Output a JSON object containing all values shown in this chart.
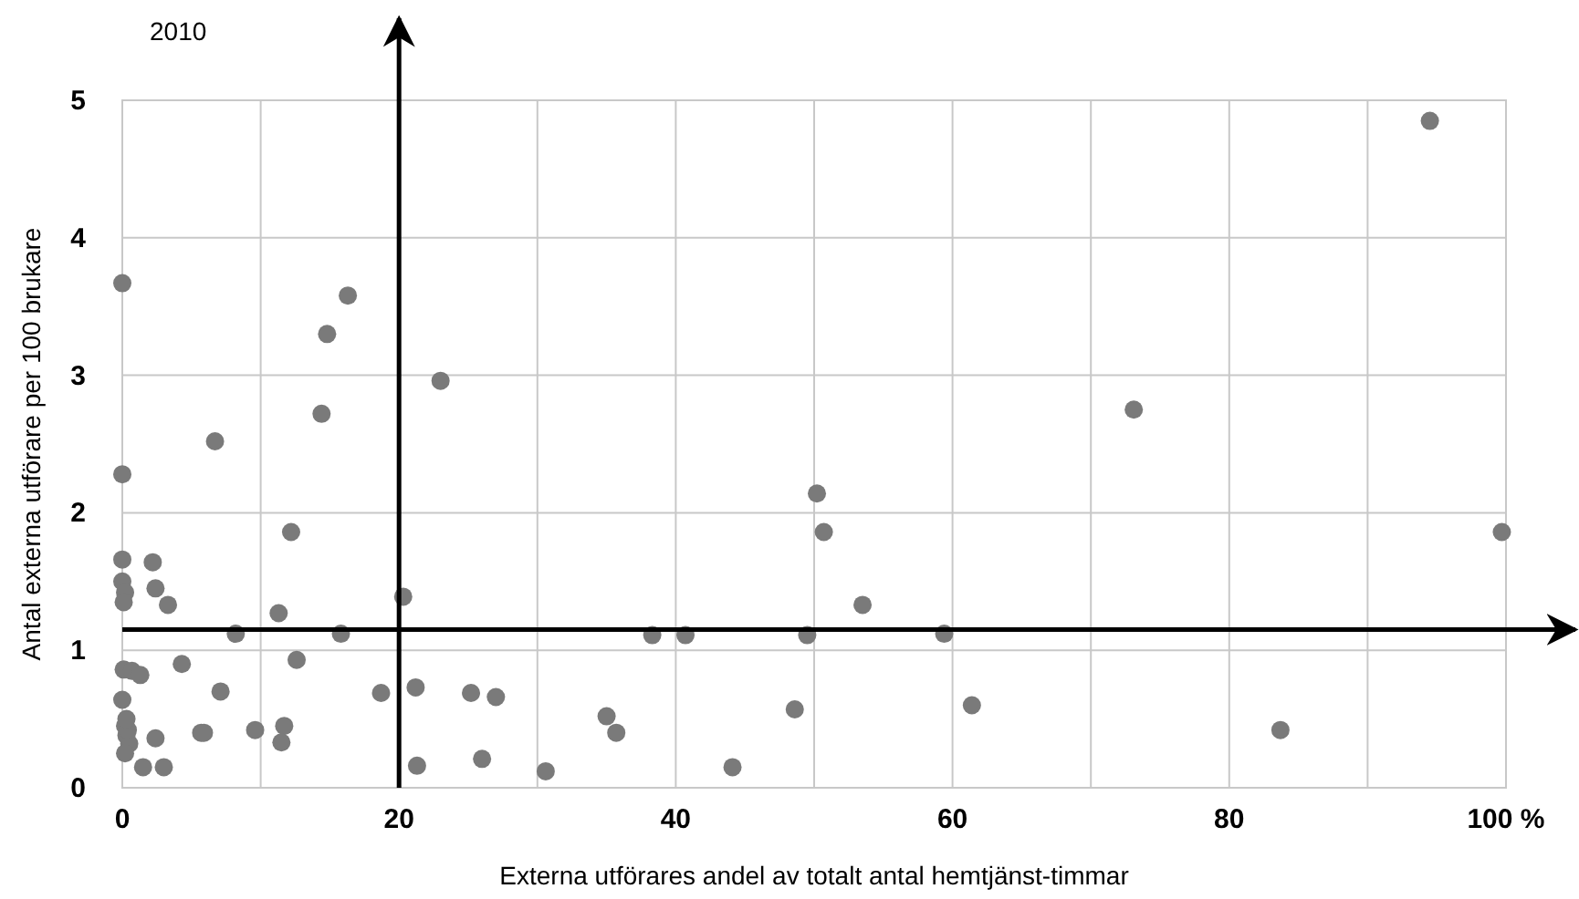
{
  "chart_data": {
    "type": "scatter",
    "title": "2010",
    "xlabel": "Externa utförares andel av totalt antal hemtjänst-timmar",
    "ylabel": "Antal externa utförare per 100 brukare",
    "xlim": [
      0,
      100
    ],
    "ylim": [
      0,
      5
    ],
    "xticks": [
      0,
      {
        "value": 10,
        "label": null
      },
      20,
      {
        "value": 30,
        "label": null
      },
      40,
      {
        "value": 50,
        "label": null
      },
      60,
      {
        "value": 70,
        "label": null
      },
      80,
      {
        "value": 90,
        "label": null
      },
      {
        "value": 100,
        "label": "100 %"
      }
    ],
    "yticks": [
      0,
      1,
      2,
      3,
      4,
      5
    ],
    "grid": true,
    "marker": "circle",
    "ref_lines": [
      {
        "axis": "x",
        "value": 20,
        "color": "#000000"
      },
      {
        "axis": "y",
        "value": 1.15,
        "color": "#000000"
      }
    ],
    "series": [
      {
        "color": "#7a7a7a",
        "x": [
          0,
          0,
          0,
          0,
          0.2,
          0.1,
          2.2,
          2.4,
          3.3,
          6.7,
          12.2,
          11.3,
          8.2,
          15.8,
          4.3,
          12.6,
          7.1,
          0.1,
          0.7,
          1.3,
          0,
          0.2,
          0.3,
          0.5,
          0.2,
          0.4,
          0.3,
          2.4,
          3.0,
          1.5,
          5.7,
          5.9,
          9.6,
          11.7,
          11.5,
          18.7,
          21.2,
          20.3,
          16.3,
          14.8,
          14.4,
          23,
          21.3,
          25.2,
          27,
          26,
          30.6,
          35,
          35.7,
          38.3,
          40.7,
          44.1,
          48.6,
          49.5,
          50.2,
          50.7,
          53.5,
          59.4,
          61.4,
          73.1,
          83.7,
          94.5,
          99.7
        ],
        "values": [
          3.67,
          2.28,
          1.66,
          1.5,
          1.42,
          1.35,
          1.64,
          1.45,
          1.33,
          2.52,
          1.86,
          1.27,
          1.12,
          1.12,
          0.9,
          0.93,
          0.7,
          0.86,
          0.85,
          0.82,
          0.64,
          0.45,
          0.38,
          0.32,
          0.25,
          0.42,
          0.5,
          0.36,
          0.15,
          0.15,
          0.4,
          0.4,
          0.42,
          0.45,
          0.33,
          0.69,
          0.73,
          1.39,
          3.58,
          3.3,
          2.72,
          2.96,
          0.16,
          0.69,
          0.66,
          0.21,
          0.12,
          0.52,
          0.4,
          1.11,
          1.11,
          0.15,
          0.57,
          1.11,
          2.14,
          1.86,
          1.33,
          1.12,
          0.6,
          2.75,
          0.42,
          4.85,
          1.86
        ]
      }
    ]
  }
}
